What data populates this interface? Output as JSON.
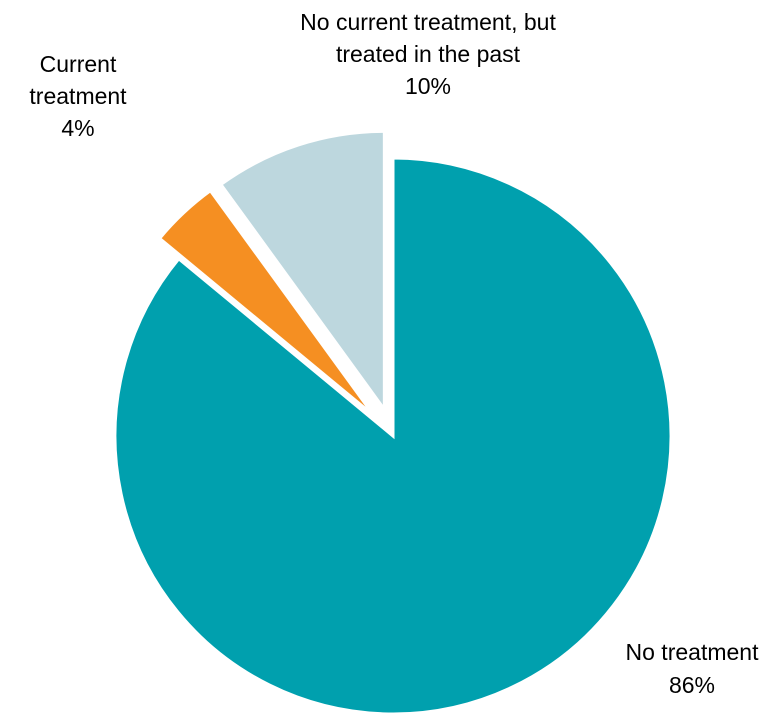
{
  "chart_data": {
    "type": "pie",
    "title": "",
    "slices": [
      {
        "label_lines": [
          "No treatment"
        ],
        "value": 86,
        "value_label": "86%",
        "color": "#00A0AE",
        "exploded": false
      },
      {
        "label_lines": [
          "Current",
          "treatment"
        ],
        "value": 4,
        "value_label": "4%",
        "color": "#F58F22",
        "exploded": true
      },
      {
        "label_lines": [
          "No current treatment, but",
          "treated in the past"
        ],
        "value": 10,
        "value_label": "10%",
        "color": "#BDD7DE",
        "exploded": true
      }
    ],
    "start_direction": "12 o'clock",
    "direction": "clockwise",
    "legend": "none"
  }
}
